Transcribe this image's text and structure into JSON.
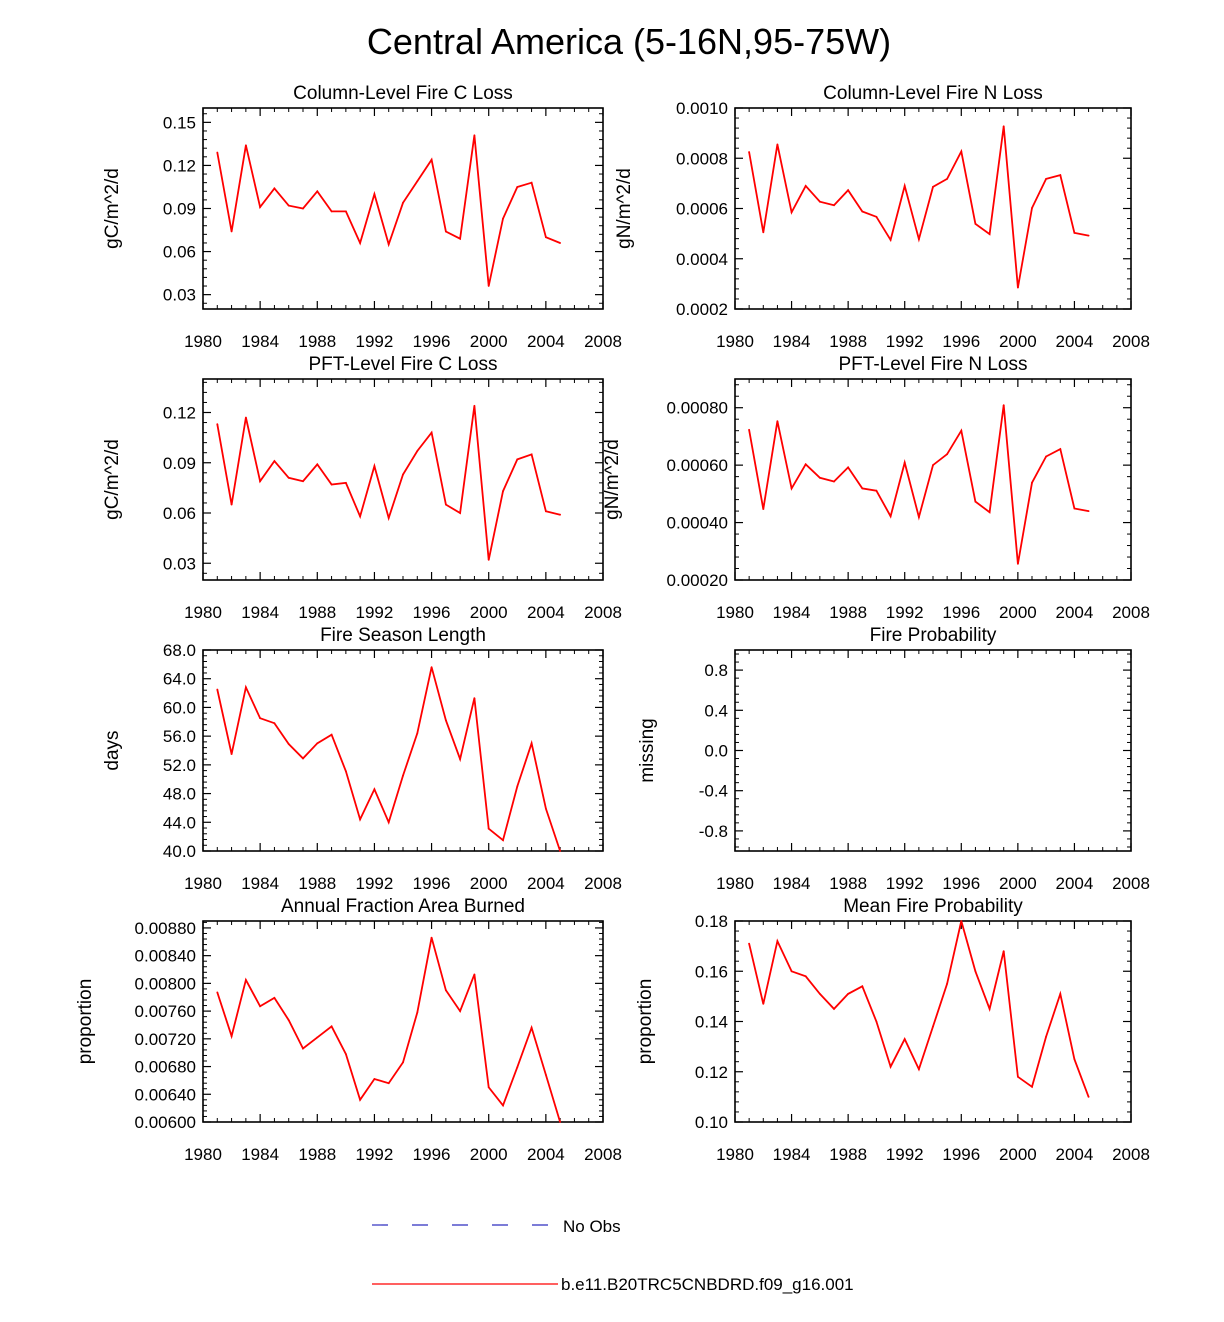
{
  "figure": {
    "title": "Central America (5-16N,95-75W)"
  },
  "legend": {
    "entries": [
      {
        "label": "No Obs",
        "color": "#2e2ebf",
        "dash": "dashed"
      },
      {
        "label": "b.e11.B20TRC5CNBDRD.f09_g16.001",
        "color": "#ff0000",
        "dash": "solid"
      }
    ]
  },
  "chart_data": [
    {
      "type": "line",
      "title": "Column-Level Fire C Loss",
      "xlabel": "",
      "ylabel": "gC/m^2/d",
      "xlim": [
        1980,
        2008
      ],
      "ylim": [
        0.02,
        0.16
      ],
      "xticks": [
        1980,
        1984,
        1988,
        1992,
        1996,
        2000,
        2004,
        2008
      ],
      "xtick_labels": [
        "1980",
        "1984",
        "1988",
        "1992",
        "1996",
        "2000",
        "2004",
        "2008"
      ],
      "yticks": [
        0.03,
        0.06,
        0.09,
        0.12,
        0.15
      ],
      "ytick_labels": [
        "0.03",
        "0.06",
        "0.09",
        "0.12",
        "0.15"
      ],
      "series": [
        {
          "name": "b.e11.B20TRC5CNBDRD.f09_g16.001",
          "color": "#ff0000",
          "x": [
            1981,
            1982,
            1983,
            1984,
            1985,
            1986,
            1987,
            1988,
            1989,
            1990,
            1991,
            1992,
            1993,
            1994,
            1995,
            1996,
            1997,
            1998,
            1999,
            2000,
            2001,
            2002,
            2003,
            2004,
            2005
          ],
          "y": [
            0.129,
            0.074,
            0.134,
            0.091,
            0.104,
            0.092,
            0.09,
            0.102,
            0.088,
            0.088,
            0.066,
            0.1,
            0.065,
            0.094,
            0.109,
            0.124,
            0.074,
            0.069,
            0.141,
            0.036,
            0.083,
            0.105,
            0.108,
            0.07,
            0.066
          ]
        }
      ]
    },
    {
      "type": "line",
      "title": "Column-Level Fire N Loss",
      "xlabel": "",
      "ylabel": "gN/m^2/d",
      "xlim": [
        1980,
        2008
      ],
      "ylim": [
        0.0002,
        0.001
      ],
      "xticks": [
        1980,
        1984,
        1988,
        1992,
        1996,
        2000,
        2004,
        2008
      ],
      "xtick_labels": [
        "1980",
        "1984",
        "1988",
        "1992",
        "1996",
        "2000",
        "2004",
        "2008"
      ],
      "yticks": [
        0.0002,
        0.0004,
        0.0006,
        0.0008,
        0.001
      ],
      "ytick_labels": [
        "0.0002",
        "0.0004",
        "0.0006",
        "0.0008",
        "0.0010"
      ],
      "series": [
        {
          "name": "b.e11.B20TRC5CNBDRD.f09_g16.001",
          "color": "#ff0000",
          "x": [
            1981,
            1982,
            1983,
            1984,
            1985,
            1986,
            1987,
            1988,
            1989,
            1990,
            1991,
            1992,
            1993,
            1994,
            1995,
            1996,
            1997,
            1998,
            1999,
            2000,
            2001,
            2002,
            2003,
            2004,
            2005
          ],
          "y": [
            0.000825,
            0.000505,
            0.000855,
            0.000585,
            0.00069,
            0.000627,
            0.000613,
            0.000673,
            0.000588,
            0.000567,
            0.000475,
            0.00069,
            0.000478,
            0.000686,
            0.000718,
            0.000827,
            0.000539,
            0.000498,
            0.000927,
            0.000285,
            0.000602,
            0.000718,
            0.000733,
            0.000503,
            0.000492
          ]
        }
      ]
    },
    {
      "type": "line",
      "title": "PFT-Level Fire C Loss",
      "xlabel": "",
      "ylabel": "gC/m^2/d",
      "xlim": [
        1980,
        2008
      ],
      "ylim": [
        0.02,
        0.14
      ],
      "xticks": [
        1980,
        1984,
        1988,
        1992,
        1996,
        2000,
        2004,
        2008
      ],
      "xtick_labels": [
        "1980",
        "1984",
        "1988",
        "1992",
        "1996",
        "2000",
        "2004",
        "2008"
      ],
      "yticks": [
        0.03,
        0.06,
        0.09,
        0.12
      ],
      "ytick_labels": [
        "0.03",
        "0.06",
        "0.09",
        "0.12"
      ],
      "series": [
        {
          "name": "b.e11.B20TRC5CNBDRD.f09_g16.001",
          "color": "#ff0000",
          "x": [
            1981,
            1982,
            1983,
            1984,
            1985,
            1986,
            1987,
            1988,
            1989,
            1990,
            1991,
            1992,
            1993,
            1994,
            1995,
            1996,
            1997,
            1998,
            1999,
            2000,
            2001,
            2002,
            2003,
            2004,
            2005
          ],
          "y": [
            0.113,
            0.065,
            0.117,
            0.079,
            0.091,
            0.081,
            0.079,
            0.089,
            0.077,
            0.078,
            0.058,
            0.088,
            0.057,
            0.083,
            0.097,
            0.108,
            0.065,
            0.06,
            0.124,
            0.032,
            0.073,
            0.092,
            0.095,
            0.061,
            0.059
          ]
        }
      ]
    },
    {
      "type": "line",
      "title": "PFT-Level Fire N Loss",
      "xlabel": "",
      "ylabel": "gN/m^2/d",
      "xlim": [
        1980,
        2008
      ],
      "ylim": [
        0.0002,
        0.0009
      ],
      "xticks": [
        1980,
        1984,
        1988,
        1992,
        1996,
        2000,
        2004,
        2008
      ],
      "xtick_labels": [
        "1980",
        "1984",
        "1988",
        "1992",
        "1996",
        "2000",
        "2004",
        "2008"
      ],
      "yticks": [
        0.0002,
        0.0004,
        0.0006,
        0.0008
      ],
      "ytick_labels": [
        "0.00020",
        "0.00040",
        "0.00060",
        "0.00080"
      ],
      "series": [
        {
          "name": "b.e11.B20TRC5CNBDRD.f09_g16.001",
          "color": "#ff0000",
          "x": [
            1981,
            1982,
            1983,
            1984,
            1985,
            1986,
            1987,
            1988,
            1989,
            1990,
            1991,
            1992,
            1993,
            1994,
            1995,
            1996,
            1997,
            1998,
            1999,
            2000,
            2001,
            2002,
            2003,
            2004,
            2005
          ],
          "y": [
            0.000723,
            0.000447,
            0.000753,
            0.000519,
            0.000603,
            0.000556,
            0.000543,
            0.000592,
            0.000519,
            0.000511,
            0.000422,
            0.000609,
            0.000419,
            0.0006,
            0.000638,
            0.00072,
            0.000473,
            0.000436,
            0.000809,
            0.000256,
            0.000539,
            0.00063,
            0.000656,
            0.000449,
            0.00044
          ]
        }
      ]
    },
    {
      "type": "line",
      "title": "Fire Season Length",
      "xlabel": "",
      "ylabel": "days",
      "xlim": [
        1980,
        2008
      ],
      "ylim": [
        40,
        68
      ],
      "xticks": [
        1980,
        1984,
        1988,
        1992,
        1996,
        2000,
        2004,
        2008
      ],
      "xtick_labels": [
        "1980",
        "1984",
        "1988",
        "1992",
        "1996",
        "2000",
        "2004",
        "2008"
      ],
      "yticks": [
        40,
        44,
        48,
        52,
        56,
        60,
        64,
        68
      ],
      "ytick_labels": [
        "40.0",
        "44.0",
        "48.0",
        "52.0",
        "56.0",
        "60.0",
        "64.0",
        "68.0"
      ],
      "series": [
        {
          "name": "b.e11.B20TRC5CNBDRD.f09_g16.001",
          "color": "#ff0000",
          "x": [
            1981,
            1982,
            1983,
            1984,
            1985,
            1986,
            1987,
            1988,
            1989,
            1990,
            1991,
            1992,
            1993,
            1994,
            1995,
            1996,
            1997,
            1998,
            1999,
            2000,
            2001,
            2002,
            2003,
            2004,
            2005
          ],
          "y": [
            62.5,
            53.5,
            62.8,
            58.5,
            57.8,
            54.9,
            52.9,
            55.0,
            56.2,
            51.1,
            44.4,
            48.6,
            44.0,
            50.5,
            56.4,
            65.6,
            58.2,
            52.8,
            61.3,
            43.1,
            41.5,
            49.0,
            55.0,
            45.9,
            40.0
          ]
        }
      ]
    },
    {
      "type": "line",
      "title": "Fire Probability",
      "xlabel": "",
      "ylabel": "missing",
      "xlim": [
        1980,
        2008
      ],
      "ylim": [
        -1.0,
        1.0
      ],
      "xticks": [
        1980,
        1984,
        1988,
        1992,
        1996,
        2000,
        2004,
        2008
      ],
      "xtick_labels": [
        "1980",
        "1984",
        "1988",
        "1992",
        "1996",
        "2000",
        "2004",
        "2008"
      ],
      "yticks": [
        -0.8,
        -0.4,
        0.0,
        0.4,
        0.8
      ],
      "ytick_labels": [
        "-0.8",
        "-0.4",
        "0.0",
        "0.4",
        "0.8"
      ],
      "series": []
    },
    {
      "type": "line",
      "title": "Annual Fraction Area Burned",
      "xlabel": "",
      "ylabel": "proportion",
      "xlim": [
        1980,
        2008
      ],
      "ylim": [
        0.006,
        0.0089
      ],
      "xticks": [
        1980,
        1984,
        1988,
        1992,
        1996,
        2000,
        2004,
        2008
      ],
      "xtick_labels": [
        "1980",
        "1984",
        "1988",
        "1992",
        "1996",
        "2000",
        "2004",
        "2008"
      ],
      "yticks": [
        0.006,
        0.0064,
        0.0068,
        0.0072,
        0.0076,
        0.008,
        0.0084,
        0.0088
      ],
      "ytick_labels": [
        "0.00600",
        "0.00640",
        "0.00680",
        "0.00720",
        "0.00760",
        "0.00800",
        "0.00840",
        "0.00880"
      ],
      "series": [
        {
          "name": "b.e11.B20TRC5CNBDRD.f09_g16.001",
          "color": "#ff0000",
          "x": [
            1981,
            1982,
            1983,
            1984,
            1985,
            1986,
            1987,
            1988,
            1989,
            1990,
            1991,
            1992,
            1993,
            1994,
            1995,
            1996,
            1997,
            1998,
            1999,
            2000,
            2001,
            2002,
            2003,
            2004,
            2005
          ],
          "y": [
            0.00787,
            0.00724,
            0.00805,
            0.00767,
            0.00779,
            0.00747,
            0.00706,
            0.00722,
            0.00738,
            0.00698,
            0.00632,
            0.00662,
            0.00656,
            0.00686,
            0.00758,
            0.00866,
            0.0079,
            0.0076,
            0.00813,
            0.0065,
            0.00624,
            0.00679,
            0.00736,
            0.00668,
            0.006
          ]
        }
      ]
    },
    {
      "type": "line",
      "title": "Mean Fire Probability",
      "xlabel": "",
      "ylabel": "proportion",
      "xlim": [
        1980,
        2008
      ],
      "ylim": [
        0.1,
        0.18
      ],
      "xticks": [
        1980,
        1984,
        1988,
        1992,
        1996,
        2000,
        2004,
        2008
      ],
      "xtick_labels": [
        "1980",
        "1984",
        "1988",
        "1992",
        "1996",
        "2000",
        "2004",
        "2008"
      ],
      "yticks": [
        0.1,
        0.12,
        0.14,
        0.16,
        0.18
      ],
      "ytick_labels": [
        "0.10",
        "0.12",
        "0.14",
        "0.16",
        "0.18"
      ],
      "series": [
        {
          "name": "b.e11.B20TRC5CNBDRD.f09_g16.001",
          "color": "#ff0000",
          "x": [
            1981,
            1982,
            1983,
            1984,
            1985,
            1986,
            1987,
            1988,
            1989,
            1990,
            1991,
            1992,
            1993,
            1994,
            1995,
            1996,
            1997,
            1998,
            1999,
            2000,
            2001,
            2002,
            2003,
            2004,
            2005
          ],
          "y": [
            0.171,
            0.147,
            0.172,
            0.16,
            0.158,
            0.151,
            0.145,
            0.151,
            0.154,
            0.14,
            0.122,
            0.133,
            0.121,
            0.138,
            0.155,
            0.18,
            0.16,
            0.145,
            0.168,
            0.118,
            0.114,
            0.134,
            0.151,
            0.125,
            0.11
          ]
        }
      ]
    }
  ]
}
